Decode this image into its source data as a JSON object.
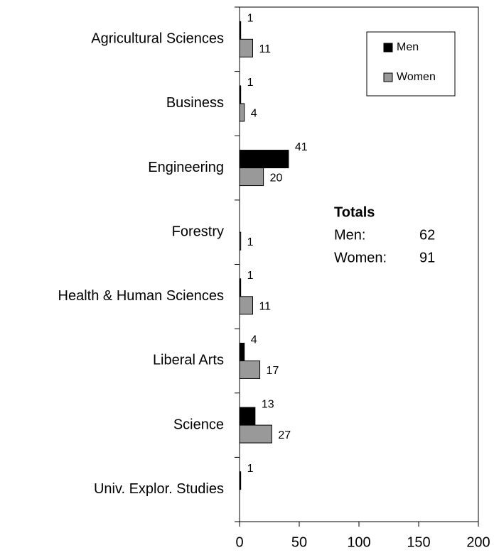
{
  "chart_data": {
    "type": "barh",
    "categories": [
      "Agricultural Sciences",
      "Business",
      "Engineering",
      "Forestry",
      "Health & Human Sciences",
      "Liberal Arts",
      "Science",
      "Univ. Explor. Studies"
    ],
    "series": [
      {
        "name": "Men",
        "color": "#000000",
        "values": [
          1,
          1,
          41,
          null,
          1,
          4,
          13,
          1
        ]
      },
      {
        "name": "Women",
        "color": "#999999",
        "values": [
          11,
          4,
          20,
          1,
          11,
          17,
          27,
          null
        ]
      }
    ],
    "xlim": [
      0,
      200
    ],
    "xticks": [
      0,
      50,
      100,
      150,
      200
    ],
    "legend": "upper right",
    "totals": {
      "title": "Totals",
      "rows": [
        {
          "label": "Men:",
          "value": 62
        },
        {
          "label": "Women:",
          "value": 91
        }
      ]
    }
  }
}
